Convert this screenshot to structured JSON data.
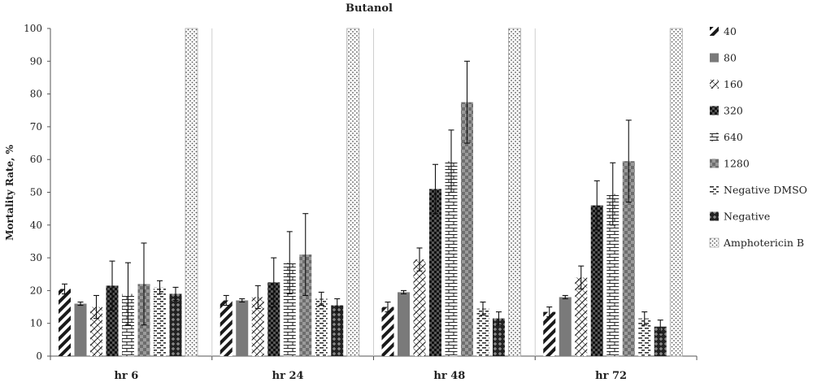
{
  "chart_data": {
    "type": "bar",
    "title": "Butanol",
    "xlabel": "",
    "ylabel": "Mortality Rate, %",
    "ylim": [
      0,
      100
    ],
    "yticks": [
      0,
      10,
      20,
      30,
      40,
      50,
      60,
      70,
      80,
      90,
      100
    ],
    "grid": "vertical separators between groups",
    "legend_position": "right",
    "categories": [
      "hr 6",
      "hr 24",
      "hr 48",
      "hr 72"
    ],
    "series": [
      {
        "name": "40",
        "values": [
          20.5,
          17,
          15,
          13.5
        ],
        "errors": [
          1.5,
          1.5,
          1.5,
          1.5
        ],
        "pattern": "diag-thick"
      },
      {
        "name": "80",
        "values": [
          16,
          17,
          19.5,
          18
        ],
        "errors": [
          0.5,
          0.5,
          0.5,
          0.5
        ],
        "pattern": "solid-gray"
      },
      {
        "name": "160",
        "values": [
          15,
          18,
          29.5,
          24
        ],
        "errors": [
          3.5,
          3.5,
          3.5,
          3.5
        ],
        "pattern": "diag-cross"
      },
      {
        "name": "320",
        "values": [
          21.5,
          22.5,
          51,
          46
        ],
        "errors": [
          7.5,
          7.5,
          7.5,
          7.5
        ],
        "pattern": "dark-checker"
      },
      {
        "name": "640",
        "values": [
          19,
          28.5,
          59.5,
          49.5
        ],
        "errors": [
          9.5,
          9.5,
          9.5,
          9.5
        ],
        "pattern": "brick"
      },
      {
        "name": "1280",
        "values": [
          22,
          31,
          77.5,
          59.5
        ],
        "errors": [
          12.5,
          12.5,
          12.5,
          12.5
        ],
        "pattern": "gray-checker"
      },
      {
        "name": "Negative DMSO",
        "values": [
          21,
          17.5,
          14.5,
          11.5
        ],
        "errors": [
          2,
          2,
          2,
          2
        ],
        "pattern": "dash-grid"
      },
      {
        "name": "Negative",
        "values": [
          19,
          15.5,
          11.5,
          9
        ],
        "errors": [
          2,
          2,
          2,
          2
        ],
        "pattern": "dark-diamond"
      },
      {
        "name": "Amphotericin B",
        "values": [
          100,
          100,
          100,
          100
        ],
        "errors": [
          0,
          0,
          0,
          0
        ],
        "pattern": "dots"
      }
    ]
  }
}
